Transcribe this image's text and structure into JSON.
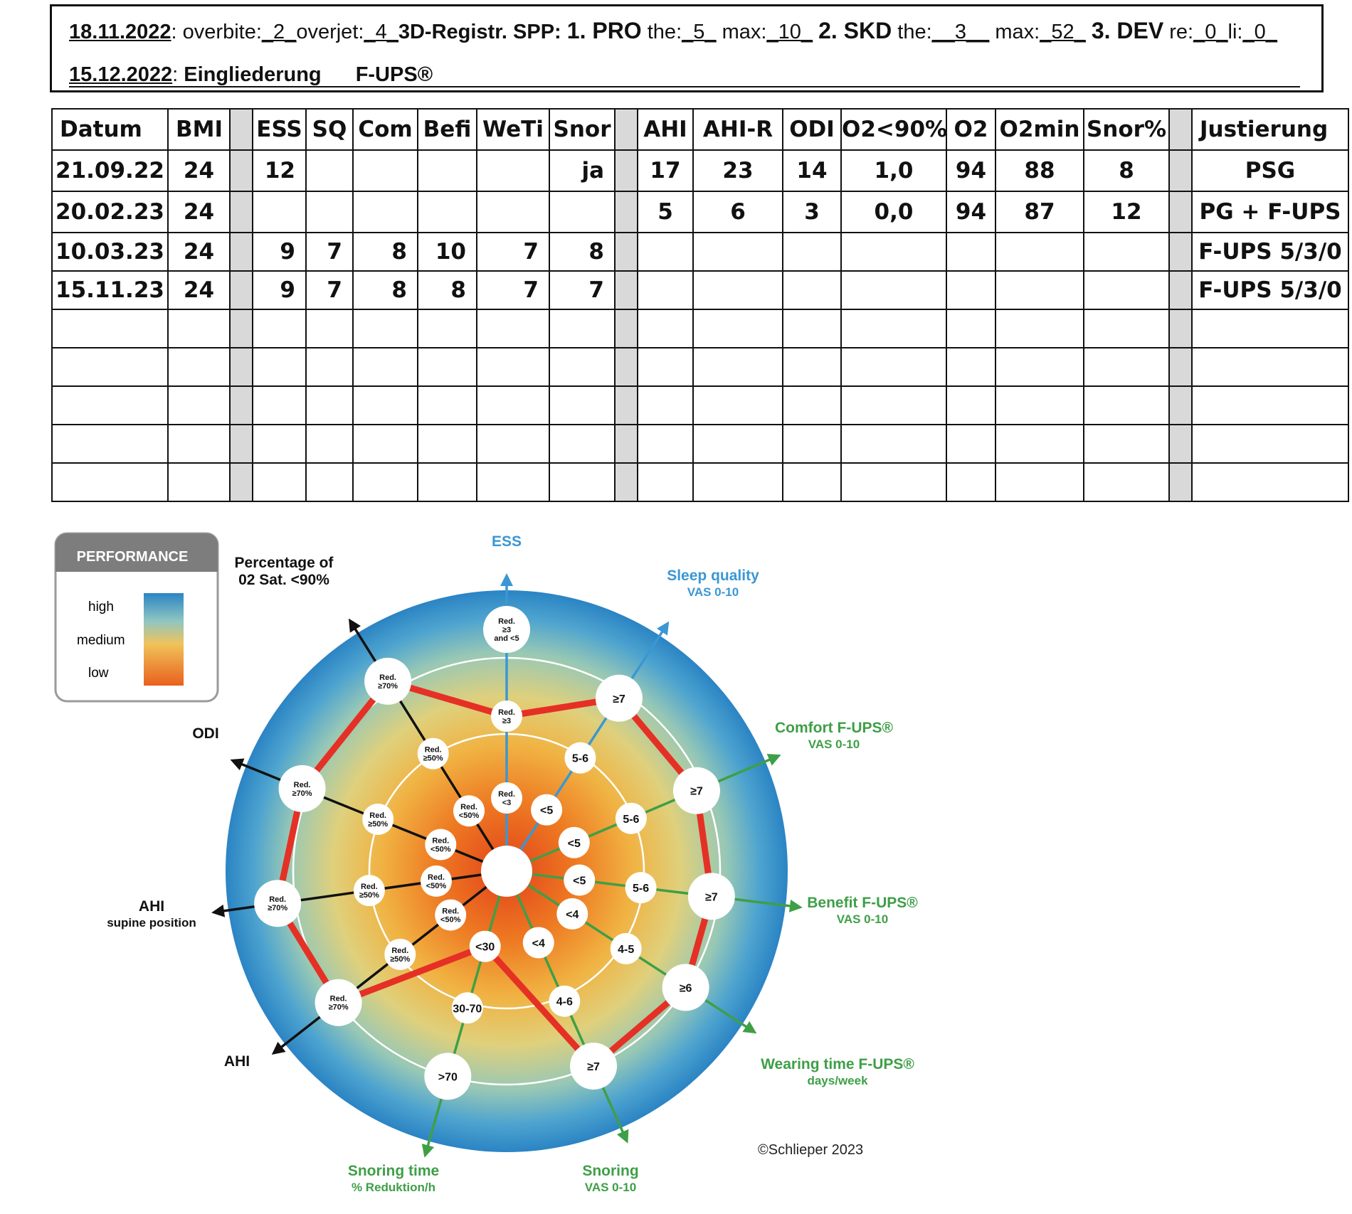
{
  "header": {
    "line1": {
      "date": "18.11.2022",
      "overbite_label": "overbite:",
      "overbite_value": "2",
      "overjet_label": "overjet:",
      "overjet_value": "4",
      "registr_label": "3D-Registr. SPP:",
      "pro_label": "1. PRO",
      "pro_the_label": "the:",
      "pro_the_value": "5",
      "pro_max_label": "max:",
      "pro_max_value": "10",
      "skd_label": "2. SKD",
      "skd_the_label": "the:",
      "skd_the_value": "3",
      "skd_max_label": "max:",
      "skd_max_value": "52",
      "dev_label": "3. DEV",
      "dev_re_label": "re:",
      "dev_re_value": "0",
      "dev_li_label": "li:",
      "dev_li_value": "0"
    },
    "line2": {
      "date": "15.12.2022",
      "label": "Eingliederung",
      "device": "F-UPS®"
    }
  },
  "table": {
    "headers": [
      "Datum",
      "BMI",
      "ESS",
      "SQ",
      "Com",
      "Befi",
      "WeTi",
      "Snor",
      "AHI",
      "AHI-R",
      "ODI",
      "O2<90%",
      "O2",
      "O2min",
      "Snor%",
      "Justierung"
    ],
    "rows": [
      [
        "21.09.22",
        "24",
        "12",
        "",
        "",
        "",
        "",
        "ja",
        "17",
        "23",
        "14",
        "1,0",
        "94",
        "88",
        "8",
        "PSG"
      ],
      [
        "20.02.23",
        "24",
        "",
        "",
        "",
        "",
        "",
        "",
        "5",
        "6",
        "3",
        "0,0",
        "94",
        "87",
        "12",
        "PG + F-UPS"
      ],
      [
        "10.03.23",
        "24",
        "9",
        "7",
        "8",
        "10",
        "7",
        "8",
        "",
        "",
        "",
        "",
        "",
        "",
        "",
        "F-UPS 5/3/0"
      ],
      [
        "15.11.23",
        "24",
        "9",
        "7",
        "8",
        "8",
        "7",
        "7",
        "",
        "",
        "",
        "",
        "",
        "",
        "",
        "F-UPS 5/3/0"
      ],
      [
        "",
        "",
        "",
        "",
        "",
        "",
        "",
        "",
        "",
        "",
        "",
        "",
        "",
        "",
        "",
        ""
      ],
      [
        "",
        "",
        "",
        "",
        "",
        "",
        "",
        "",
        "",
        "",
        "",
        "",
        "",
        "",
        "",
        ""
      ],
      [
        "",
        "",
        "",
        "",
        "",
        "",
        "",
        "",
        "",
        "",
        "",
        "",
        "",
        "",
        "",
        ""
      ],
      [
        "",
        "",
        "",
        "",
        "",
        "",
        "",
        "",
        "",
        "",
        "",
        "",
        "",
        "",
        "",
        ""
      ],
      [
        "",
        "",
        "",
        "",
        "",
        "",
        "",
        "",
        "",
        "",
        "",
        "",
        "",
        "",
        "",
        ""
      ]
    ]
  },
  "legend": {
    "title": "PERFORMANCE",
    "high": "high",
    "medium": "medium",
    "low": "low"
  },
  "axes": {
    "ess": {
      "title": "ESS",
      "outer": "Red. ≥3 and <5",
      "mid": "Red. ≥3",
      "inner": "Red. <3"
    },
    "sleep_quality": {
      "title": "Sleep quality",
      "sub": "VAS 0-10",
      "outer": "≥7",
      "mid": "5-6",
      "inner": "<5"
    },
    "comfort": {
      "title": "Comfort F-UPS®",
      "sub": "VAS 0-10",
      "outer": "≥7",
      "mid": "5-6",
      "inner": "<5"
    },
    "benefit": {
      "title": "Benefit F-UPS®",
      "sub": "VAS 0-10",
      "outer": "≥7",
      "mid": "5-6",
      "inner": "<5"
    },
    "wearing_time": {
      "title": "Wearing time F-UPS®",
      "sub": "days/week",
      "outer": "≥6",
      "mid": "4-5",
      "inner": "<4"
    },
    "snoring": {
      "title": "Snoring",
      "sub": "VAS 0-10",
      "outer": "≥7",
      "mid": "4-6",
      "inner": "<4"
    },
    "snoring_time": {
      "title": "Snoring time",
      "sub": "% Reduktion/h",
      "outer": ">70",
      "mid": "30-70",
      "inner": "<30"
    },
    "ahi": {
      "title": "AHI",
      "outer": "Red. ≥70%",
      "mid": "Red. ≥50%",
      "inner": "Red. <50%"
    },
    "ahi_supine": {
      "title": "AHI",
      "sub": "supine position",
      "outer": "Red. ≥70%",
      "mid": "Red. ≥50%",
      "inner": "Red. <50%"
    },
    "odi": {
      "title": "ODI",
      "outer": "Red. ≥70%",
      "mid": "Red. ≥50%",
      "inner": "Red. <50%"
    },
    "o2": {
      "title": "Percentage of 02 Sat. <90%",
      "outer": "Red. ≥70%",
      "mid": "Red. ≥50%",
      "inner": "Red. <50%"
    }
  },
  "copyright": "©Schlieper 2023",
  "colors": {
    "red_line": "#e53025",
    "blue_axis": "#3a97d3",
    "green_axis": "#3e9f47",
    "black_axis": "#111111",
    "outer_ring": "#2a83c6"
  }
}
